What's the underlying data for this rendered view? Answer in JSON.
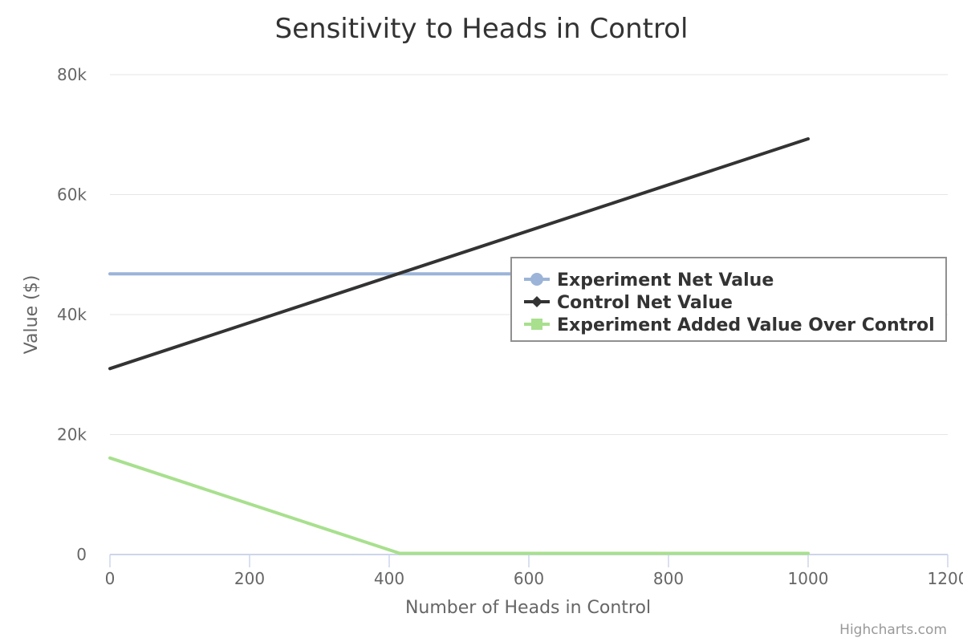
{
  "chart_data": {
    "type": "line",
    "title": "Sensitivity to Heads in Control",
    "xlabel": "Number of Heads in Control",
    "ylabel": "Value ($)",
    "xlim": [
      0,
      1200
    ],
    "ylim": [
      0,
      80000
    ],
    "x_ticks": [
      0,
      200,
      400,
      600,
      800,
      1000,
      1200
    ],
    "y_ticks": [
      0,
      20000,
      40000,
      60000,
      80000
    ],
    "x_tick_labels": [
      "0",
      "200",
      "400",
      "600",
      "800",
      "1000",
      "1200"
    ],
    "y_tick_labels": [
      "0",
      "20k",
      "40k",
      "60k",
      "80k"
    ],
    "grid": "horizontal",
    "legend_position": "right",
    "series": [
      {
        "name": "Experiment Net Value",
        "color": "#9bb4d8",
        "marker": "circle",
        "points": [
          [
            0,
            46800
          ],
          [
            1000,
            46800
          ]
        ]
      },
      {
        "name": "Control Net Value",
        "color": "#333333",
        "marker": "diamond",
        "points": [
          [
            0,
            31000
          ],
          [
            1000,
            69300
          ]
        ]
      },
      {
        "name": "Experiment Added Value Over Control",
        "color": "#a8e08e",
        "marker": "square",
        "points": [
          [
            0,
            16100
          ],
          [
            415,
            200
          ],
          [
            1000,
            200
          ]
        ]
      }
    ],
    "credits": "Highcharts.com"
  }
}
